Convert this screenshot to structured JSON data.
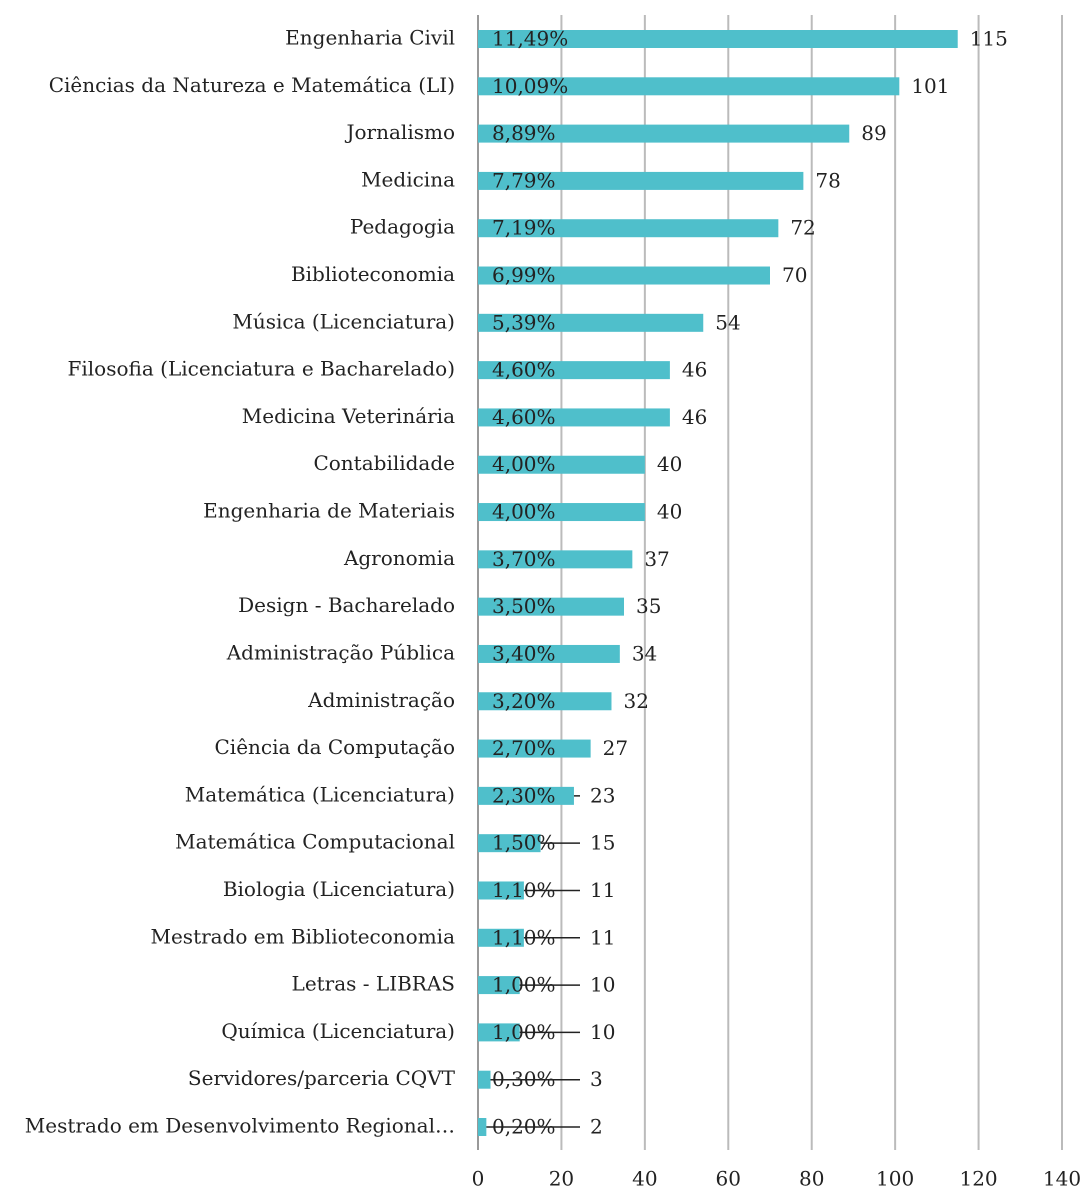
{
  "chart_data": {
    "type": "hbar",
    "categories": [
      "Engenharia Civil",
      "Ciências da Natureza e Matemática (LI)",
      "Jornalismo",
      "Medicina",
      "Pedagogia",
      "Biblioteconomia",
      "Música (Licenciatura)",
      "Filosofia (Licenciatura e Bacharelado)",
      "Medicina Veterinária",
      "Contabilidade",
      "Engenharia de Materiais",
      "Agronomia",
      "Design - Bacharelado",
      "Administração Pública",
      "Administração",
      "Ciência da Computação",
      "Matemática (Licenciatura)",
      "Matemática Computacional",
      "Biologia (Licenciatura)",
      "Mestrado em Biblioteconomia",
      "Letras - LIBRAS",
      "Química (Licenciatura)",
      "Servidores/parceria CQVT",
      "Mestrado em Desenvolvimento Regional…"
    ],
    "values": [
      115,
      101,
      89,
      78,
      72,
      70,
      54,
      46,
      46,
      40,
      40,
      37,
      35,
      34,
      32,
      27,
      23,
      15,
      11,
      11,
      10,
      10,
      3,
      2
    ],
    "percent_labels": [
      "11,49%",
      "10,09%",
      "8,89%",
      "7,79%",
      "7,19%",
      "6,99%",
      "5,39%",
      "4,60%",
      "4,60%",
      "4,00%",
      "4,00%",
      "3,70%",
      "3,50%",
      "3,40%",
      "3,20%",
      "2,70%",
      "2,30%",
      "1,50%",
      "1,10%",
      "1,10%",
      "1,00%",
      "1,00%",
      "0,30%",
      "0,20%"
    ],
    "color": "#4fbfcb",
    "xlim": [
      0,
      140
    ],
    "xticks": [
      0,
      20,
      40,
      60,
      80,
      100,
      120,
      140
    ],
    "grid": true
  }
}
